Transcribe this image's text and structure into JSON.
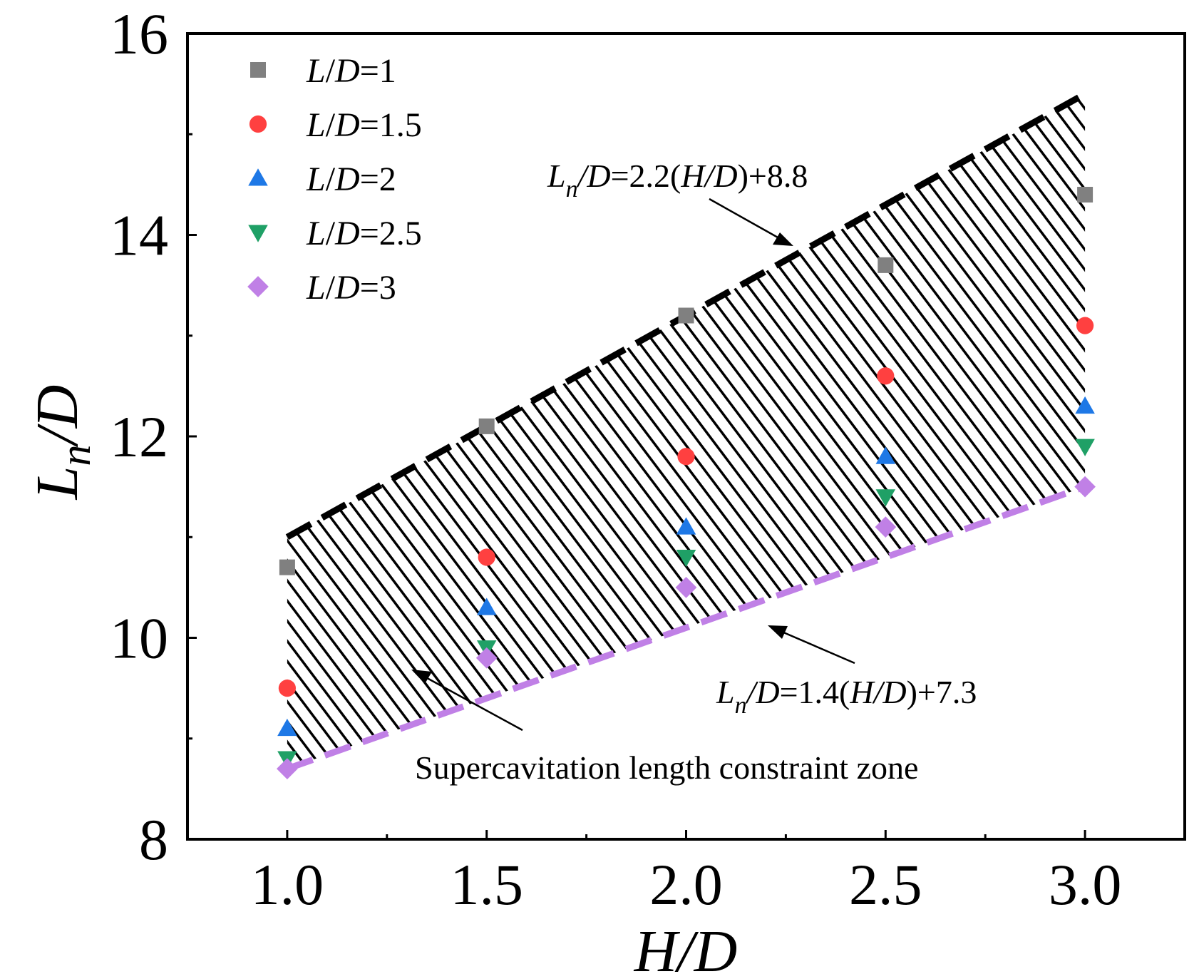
{
  "chart_data": {
    "type": "scatter",
    "title": "",
    "xlabel": "H/D",
    "ylabel": "L_n/D",
    "xlim": [
      0.75,
      3.25
    ],
    "ylim": [
      8,
      16
    ],
    "x_ticks": [
      "1.0",
      "1.5",
      "2.0",
      "2.5",
      "3.0"
    ],
    "y_ticks": [
      "8",
      "10",
      "12",
      "14",
      "16"
    ],
    "grid": false,
    "legend_position": "top-left",
    "x": [
      1.0,
      1.5,
      2.0,
      2.5,
      3.0
    ],
    "series": [
      {
        "name": "L/D=1",
        "marker": "square",
        "color": "#808080",
        "values": [
          10.7,
          12.1,
          13.2,
          13.7,
          14.4
        ]
      },
      {
        "name": "L/D=1.5",
        "marker": "circle",
        "color": "#ff4040",
        "values": [
          9.5,
          10.8,
          11.8,
          12.6,
          13.1
        ]
      },
      {
        "name": "L/D=2",
        "marker": "triangle-up",
        "color": "#1e78e6",
        "values": [
          9.1,
          10.3,
          11.1,
          11.8,
          12.3
        ]
      },
      {
        "name": "L/D=2.5",
        "marker": "triangle-down",
        "color": "#1fa066",
        "values": [
          8.8,
          9.9,
          10.8,
          11.4,
          11.9
        ]
      },
      {
        "name": "L/D=3",
        "marker": "diamond",
        "color": "#c080e6",
        "values": [
          8.7,
          9.8,
          10.5,
          11.1,
          11.5
        ]
      }
    ],
    "fit_lines": [
      {
        "label": "L_n/D=2.2(H/D)+8.8",
        "slope": 2.2,
        "intercept": 8.8,
        "color": "#000000",
        "style": "dashed"
      },
      {
        "label": "L_n/D=1.4(H/D)+7.3",
        "slope": 1.4,
        "intercept": 7.3,
        "color": "#c080e6",
        "style": "dashed"
      }
    ],
    "annotations": [
      {
        "text": "Supercavitation length constraint zone"
      }
    ],
    "shaded_region": "hatched zone between the two fit lines for H/D from 1.0 to 3.0"
  }
}
